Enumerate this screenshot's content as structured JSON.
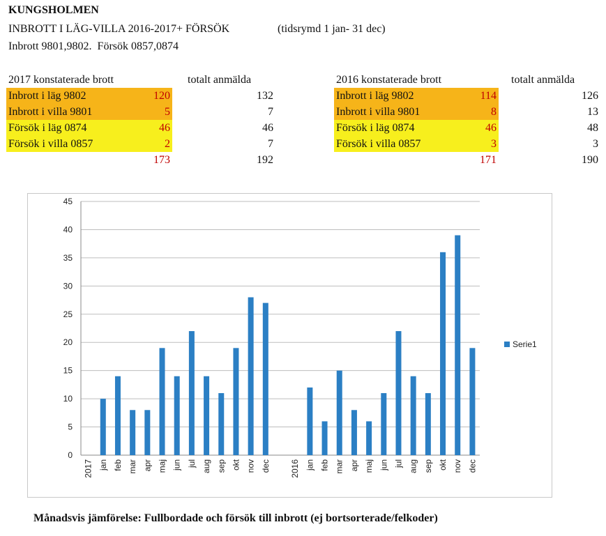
{
  "header": {
    "title": "KUNGSHOLMEN",
    "line1": "INBROTT I LÄG-VILLA 2016-2017+ FÖRSÖK",
    "period": "(tidsrymd 1 jan- 31 dec)",
    "line2": "Inbrott 9801,9802.  Försök 0857,0874"
  },
  "tables": [
    {
      "heading": "2017 konstaterade brott",
      "total_heading": "totalt anmälda",
      "rows": [
        {
          "label": "Inbrott i läg 9802",
          "value": "120",
          "total": "132",
          "color": "#f6b419"
        },
        {
          "label": "Inbrott i villa 9801",
          "value": "5",
          "total": "7",
          "color": "#f6b419"
        },
        {
          "label": "Försök i läg 0874",
          "value": "46",
          "total": "46",
          "color": "#f7ef1d"
        },
        {
          "label": "Försök i villa 0857",
          "value": "2",
          "total": "7",
          "color": "#f7ef1d"
        }
      ],
      "sum_value": "173",
      "sum_total": "192"
    },
    {
      "heading": "2016 konstaterade brott",
      "total_heading": "totalt anmälda",
      "rows": [
        {
          "label": "Inbrott i läg 9802",
          "value": "114",
          "total": "126",
          "color": "#f6b419"
        },
        {
          "label": "Inbrott i villa 9801",
          "value": "8",
          "total": "13",
          "color": "#f6b419"
        },
        {
          "label": "Försök i läg 0874",
          "value": "46",
          "total": "48",
          "color": "#f7ef1d"
        },
        {
          "label": "Försök i villa 0857",
          "value": "3",
          "total": "3",
          "color": "#f7ef1d"
        }
      ],
      "sum_value": "171",
      "sum_total": "190"
    }
  ],
  "chart_data": {
    "type": "bar",
    "categories": [
      "2017",
      "jan",
      "feb",
      "mar",
      "apr",
      "maj",
      "jun",
      "jul",
      "aug",
      "sep",
      "okt",
      "nov",
      "dec",
      "",
      "2016",
      "jan",
      "feb",
      "mar",
      "apr",
      "maj",
      "jun",
      "jul",
      "aug",
      "sep",
      "okt",
      "nov",
      "dec"
    ],
    "series": [
      {
        "name": "Serie1",
        "values": [
          null,
          10,
          14,
          8,
          8,
          19,
          14,
          22,
          14,
          11,
          19,
          28,
          27,
          null,
          null,
          12,
          6,
          15,
          8,
          6,
          11,
          22,
          14,
          11,
          36,
          39,
          19
        ]
      }
    ],
    "ylim": [
      0,
      45
    ],
    "yticks": [
      0,
      5,
      10,
      15,
      20,
      25,
      30,
      35,
      40,
      45
    ],
    "grid": true,
    "legend": "right",
    "bar_color": "#2b7fc4"
  },
  "caption": "Månadsvis jämförelse: Fullbordade och försök till inbrott (ej bortsorterade/felkoder)"
}
